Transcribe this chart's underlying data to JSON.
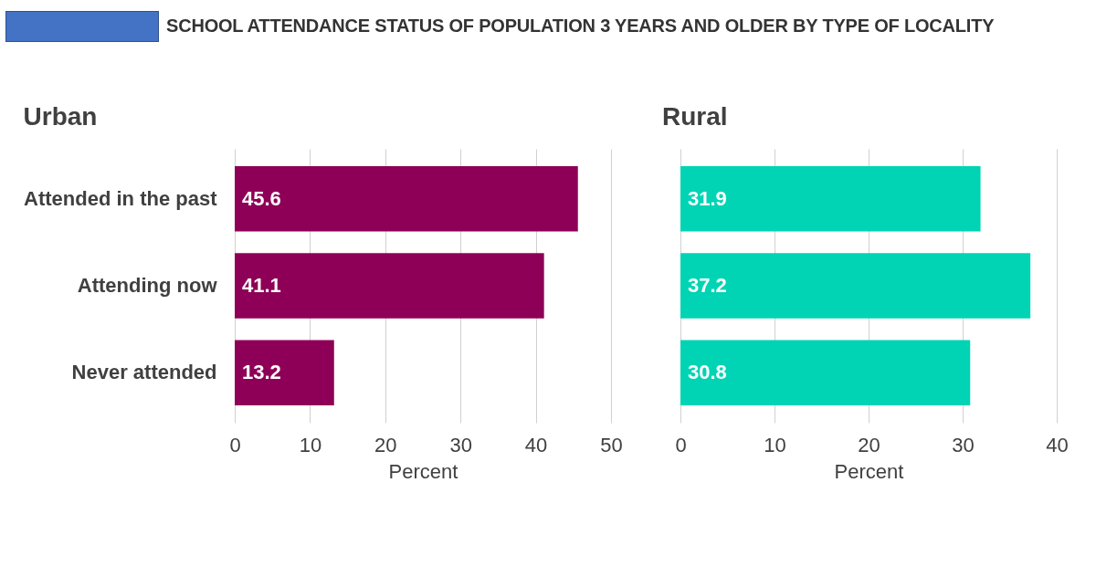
{
  "chart_data": [
    {
      "type": "bar",
      "orientation": "horizontal",
      "title": "SCHOOL ATTENDANCE STATUS OF POPULATION 3 YEARS AND OLDER BY TYPE OF LOCALITY",
      "subtitle": "Urban",
      "xlabel": "Percent",
      "categories": [
        "Attended in the past",
        "Attending now",
        "Never attended"
      ],
      "series": [
        {
          "color": "#8e0057",
          "values": [
            45.6,
            41.1,
            13.2
          ]
        }
      ],
      "xlim": [
        0,
        50
      ],
      "xticks": [
        0,
        10,
        20,
        30,
        40,
        50
      ],
      "grid": "x",
      "data_labels": true
    },
    {
      "type": "bar",
      "orientation": "horizontal",
      "subtitle": "Rural",
      "xlabel": "Percent",
      "categories": [
        null,
        null,
        null
      ],
      "series": [
        {
          "color": "#00d4b4",
          "values": [
            31.9,
            37.2,
            30.8
          ]
        }
      ],
      "xlim": [
        0,
        40
      ],
      "xticks": [
        0,
        10,
        20,
        30,
        40
      ],
      "grid": "x",
      "data_labels": true
    }
  ]
}
